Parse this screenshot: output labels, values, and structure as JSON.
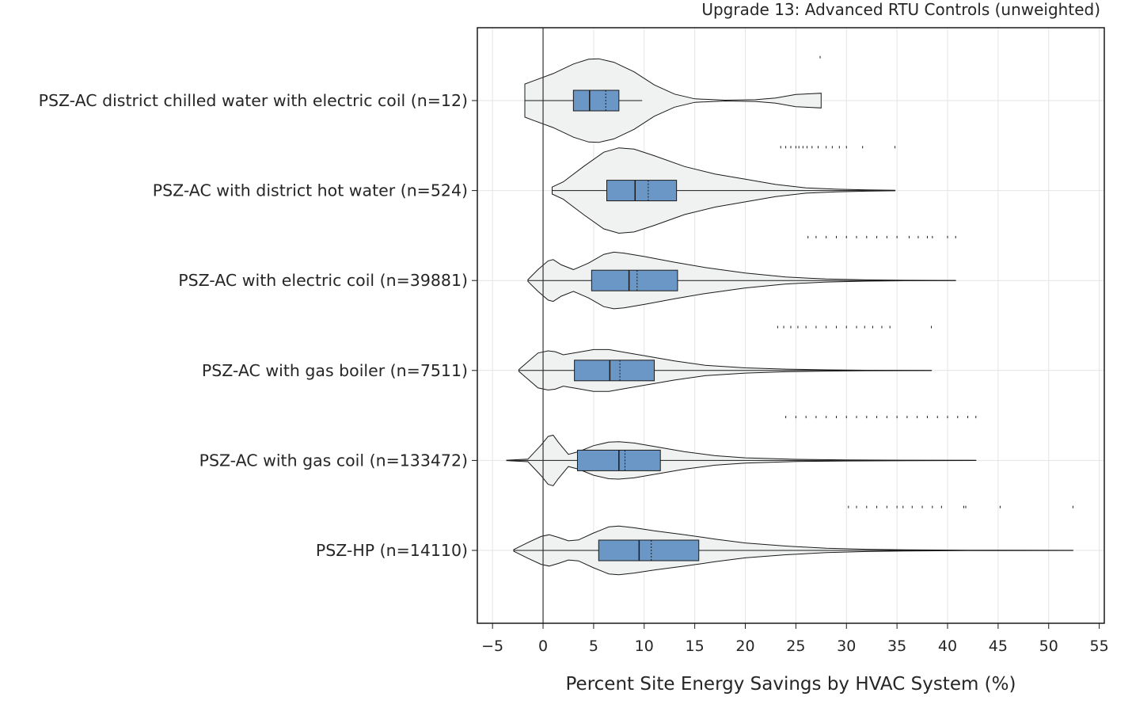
{
  "chart_data": {
    "type": "violin",
    "title": "Upgrade 13: Advanced RTU Controls (unweighted)",
    "xlabel": "Percent Site Energy Savings by HVAC System (%)",
    "ylabel": "",
    "xlim": [
      -6.5,
      55.5
    ],
    "xticks": [
      -5,
      0,
      5,
      10,
      15,
      20,
      25,
      30,
      35,
      40,
      45,
      50,
      55
    ],
    "xtick_labels": [
      "−5",
      "0",
      "5",
      "10",
      "15",
      "20",
      "25",
      "30",
      "35",
      "40",
      "45",
      "50",
      "55"
    ],
    "grid": true,
    "reference_line_x": 0,
    "colors": {
      "violin_fill": "#f0f1f1",
      "box_fill": "#6a97c6",
      "grid": "#e4e4e4",
      "ink": "#1a1a1a"
    },
    "categories": [
      {
        "label": "PSZ-AC district chilled water with electric coil (n=12)",
        "box": {
          "q1": 3.0,
          "median": 4.6,
          "mean": 6.2,
          "q3": 7.5,
          "whisker_low": -1.8,
          "whisker_high": 9.8
        },
        "violin": {
          "min": -1.8,
          "max": 27.5,
          "profile": [
            [
              -1.8,
              0.38
            ],
            [
              -1,
              0.45
            ],
            [
              1,
              0.62
            ],
            [
              3,
              0.84
            ],
            [
              4.5,
              0.95
            ],
            [
              5.5,
              0.96
            ],
            [
              7,
              0.88
            ],
            [
              9,
              0.66
            ],
            [
              11,
              0.36
            ],
            [
              13,
              0.15
            ],
            [
              15,
              0.04
            ],
            [
              18,
              0.01
            ],
            [
              21,
              0.02
            ],
            [
              23,
              0.06
            ],
            [
              25,
              0.14
            ],
            [
              27.5,
              0.17
            ]
          ]
        },
        "outliers": [
          27.4
        ]
      },
      {
        "label": "PSZ-AC with district hot water (n=524)",
        "box": {
          "q1": 6.3,
          "median": 9.1,
          "mean": 10.4,
          "q3": 13.2,
          "whisker_low": 0.9,
          "whisker_high": 34.8
        },
        "violin": {
          "min": 0.9,
          "max": 34.8,
          "profile": [
            [
              0.9,
              0.08
            ],
            [
              2,
              0.2
            ],
            [
              4,
              0.55
            ],
            [
              6,
              0.88
            ],
            [
              7.5,
              0.98
            ],
            [
              9,
              0.95
            ],
            [
              11,
              0.8
            ],
            [
              14,
              0.55
            ],
            [
              17,
              0.38
            ],
            [
              20,
              0.26
            ],
            [
              23,
              0.14
            ],
            [
              26,
              0.06
            ],
            [
              29,
              0.03
            ],
            [
              32,
              0.015
            ],
            [
              34.8,
              0.005
            ]
          ]
        },
        "outliers": [
          23.5,
          24.0,
          24.5,
          25.0,
          25.3,
          25.7,
          26.1,
          26.6,
          27.2,
          28.0,
          28.6,
          29.3,
          30.0,
          31.6,
          34.8
        ]
      },
      {
        "label": "PSZ-AC with electric coil (n=39881)",
        "box": {
          "q1": 4.8,
          "median": 8.5,
          "mean": 9.3,
          "q3": 13.3,
          "whisker_low": -1.5,
          "whisker_high": 40.8
        },
        "violin": {
          "min": -1.5,
          "max": 40.8,
          "profile": [
            [
              -1.5,
              0.02
            ],
            [
              -0.5,
              0.25
            ],
            [
              0.5,
              0.45
            ],
            [
              1.0,
              0.48
            ],
            [
              1.8,
              0.36
            ],
            [
              3,
              0.25
            ],
            [
              4.5,
              0.4
            ],
            [
              6,
              0.6
            ],
            [
              7,
              0.65
            ],
            [
              8,
              0.63
            ],
            [
              10,
              0.55
            ],
            [
              13,
              0.42
            ],
            [
              16,
              0.3
            ],
            [
              20,
              0.17
            ],
            [
              24,
              0.08
            ],
            [
              28,
              0.035
            ],
            [
              32,
              0.015
            ],
            [
              36,
              0.006
            ],
            [
              40.8,
              0.002
            ]
          ]
        },
        "outliers": [
          26.2,
          27.0,
          28.0,
          29.0,
          30.0,
          31.0,
          32.0,
          33.0,
          34.0,
          35.0,
          36.2,
          37.1,
          38.0,
          38.5,
          40.0,
          40.8
        ]
      },
      {
        "label": "PSZ-AC with gas boiler (n=7511)",
        "box": {
          "q1": 3.1,
          "median": 6.6,
          "mean": 7.6,
          "q3": 11.0,
          "whisker_low": -2.4,
          "whisker_high": 38.4
        },
        "violin": {
          "min": -2.4,
          "max": 38.4,
          "profile": [
            [
              -2.4,
              0.02
            ],
            [
              -1.5,
              0.2
            ],
            [
              -0.5,
              0.4
            ],
            [
              0.5,
              0.45
            ],
            [
              1.2,
              0.43
            ],
            [
              2,
              0.36
            ],
            [
              3.5,
              0.42
            ],
            [
              5,
              0.48
            ],
            [
              6.5,
              0.48
            ],
            [
              8,
              0.42
            ],
            [
              10,
              0.34
            ],
            [
              13,
              0.22
            ],
            [
              16,
              0.12
            ],
            [
              20,
              0.06
            ],
            [
              24,
              0.03
            ],
            [
              28,
              0.015
            ],
            [
              32,
              0.006
            ],
            [
              38.4,
              0.002
            ]
          ]
        },
        "outliers": [
          23.2,
          23.8,
          24.5,
          25.2,
          26.0,
          27.0,
          28.0,
          29.0,
          30.0,
          31.0,
          31.8,
          32.6,
          33.5,
          34.3,
          38.4
        ]
      },
      {
        "label": "PSZ-AC with gas coil (n=133472)",
        "box": {
          "q1": 3.4,
          "median": 7.5,
          "mean": 8.1,
          "q3": 11.6,
          "whisker_low": -3.6,
          "whisker_high": 42.8
        },
        "violin": {
          "min": -3.6,
          "max": 42.8,
          "profile": [
            [
              -3.6,
              0.005
            ],
            [
              -1.5,
              0.03
            ],
            [
              -0.2,
              0.35
            ],
            [
              0.5,
              0.55
            ],
            [
              1.0,
              0.58
            ],
            [
              1.5,
              0.42
            ],
            [
              2.5,
              0.14
            ],
            [
              3.5,
              0.2
            ],
            [
              5,
              0.34
            ],
            [
              6.5,
              0.42
            ],
            [
              7.5,
              0.43
            ],
            [
              9,
              0.4
            ],
            [
              11,
              0.32
            ],
            [
              14,
              0.2
            ],
            [
              17,
              0.11
            ],
            [
              20,
              0.06
            ],
            [
              25,
              0.025
            ],
            [
              30,
              0.012
            ],
            [
              36,
              0.005
            ],
            [
              42.8,
              0.002
            ]
          ]
        },
        "outliers": [
          24.0,
          25.0,
          26.0,
          27.0,
          28.0,
          29.0,
          30.0,
          31.0,
          32.0,
          33.0,
          34.0,
          35.0,
          36.0,
          37.0,
          38.0,
          39.0,
          40.0,
          41.0,
          42.0,
          42.8
        ]
      },
      {
        "label": "PSZ-HP (n=14110)",
        "box": {
          "q1": 5.5,
          "median": 9.5,
          "mean": 10.7,
          "q3": 15.4,
          "whisker_low": -2.9,
          "whisker_high": 52.4
        },
        "violin": {
          "min": -2.9,
          "max": 52.4,
          "profile": [
            [
              -2.9,
              0.02
            ],
            [
              -1.5,
              0.18
            ],
            [
              -0.2,
              0.32
            ],
            [
              0.6,
              0.36
            ],
            [
              1.5,
              0.3
            ],
            [
              2.5,
              0.22
            ],
            [
              3.5,
              0.24
            ],
            [
              5,
              0.4
            ],
            [
              6.5,
              0.54
            ],
            [
              7.5,
              0.56
            ],
            [
              9,
              0.52
            ],
            [
              11,
              0.45
            ],
            [
              14,
              0.36
            ],
            [
              17,
              0.26
            ],
            [
              20,
              0.17
            ],
            [
              24,
              0.1
            ],
            [
              28,
              0.05
            ],
            [
              32,
              0.025
            ],
            [
              36,
              0.012
            ],
            [
              42,
              0.006
            ],
            [
              52.4,
              0.002
            ]
          ]
        },
        "outliers": [
          30.2,
          31.0,
          32.0,
          33.0,
          34.0,
          35.0,
          35.6,
          36.5,
          37.5,
          38.5,
          39.4,
          41.6,
          41.8,
          45.2,
          52.4
        ]
      }
    ]
  }
}
